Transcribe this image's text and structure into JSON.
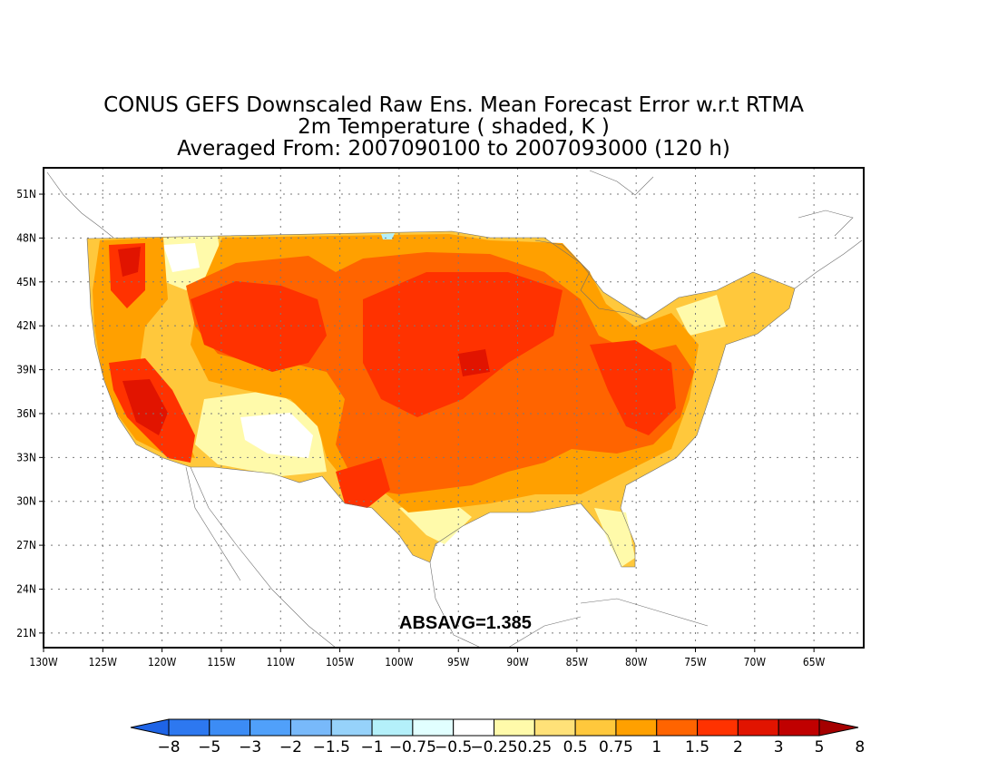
{
  "title": {
    "line1": "CONUS GEFS Downscaled Raw Ens. Mean Forecast Error w.r.t RTMA",
    "line2": "2m Temperature ( shaded, K )",
    "line3": "Averaged From: 2007090100 to 2007093000 (120 h)"
  },
  "stat_label": "ABSAVG=1.385",
  "axes": {
    "lat_ticks": [
      "51N",
      "48N",
      "45N",
      "42N",
      "39N",
      "36N",
      "33N",
      "30N",
      "27N",
      "24N",
      "21N"
    ],
    "lon_ticks": [
      "130W",
      "125W",
      "120W",
      "115W",
      "110W",
      "105W",
      "100W",
      "95W",
      "90W",
      "85W",
      "80W",
      "75W",
      "70W",
      "65W"
    ],
    "lon_range": [
      -130,
      -60.8
    ],
    "lat_range": [
      20,
      52.8
    ]
  },
  "colorbar": {
    "labels": [
      "-8",
      "-5",
      "-3",
      "-2",
      "-1.5",
      "-1",
      "-0.75",
      "-0.5",
      "-0.25",
      "0.25",
      "0.5",
      "0.75",
      "1",
      "1.5",
      "2",
      "3",
      "5",
      "8"
    ],
    "colors": [
      "#1e64e6",
      "#2d78f0",
      "#3c8cf5",
      "#50a0fa",
      "#78b9fa",
      "#96d2fa",
      "#b4f0fa",
      "#e1ffff",
      "#ffffff",
      "#fffaaa",
      "#ffe178",
      "#ffc83c",
      "#ffa000",
      "#ff6400",
      "#ff3200",
      "#e11400",
      "#c00000",
      "#a50000"
    ]
  }
}
